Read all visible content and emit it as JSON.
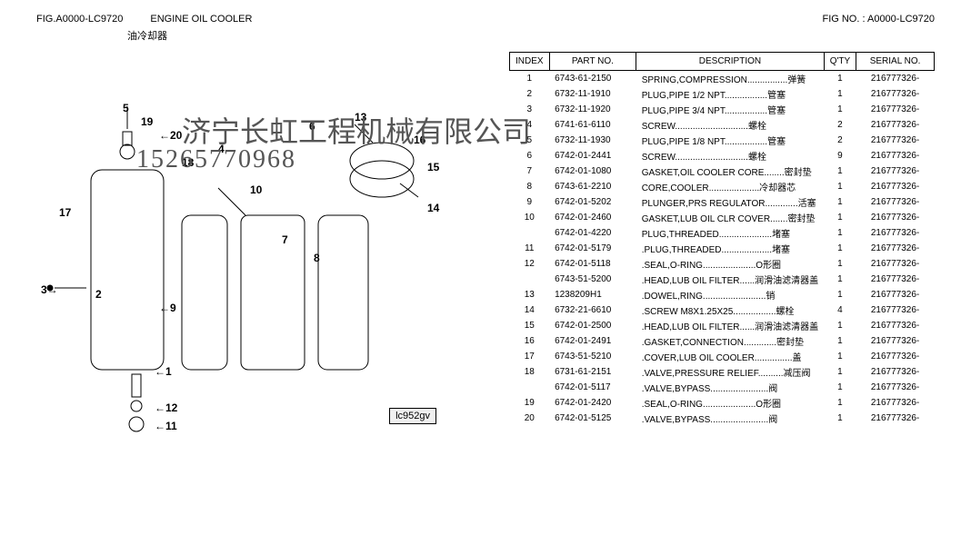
{
  "header": {
    "fig_label": "FIG.A0000-LC9720",
    "title": "ENGINE OIL COOLER",
    "subtitle": "油冷却器",
    "fig_no_label": "FIG NO. :",
    "fig_no": "A0000-LC9720"
  },
  "watermark": {
    "line1": "济宁长虹工程机械有限公司",
    "line2": "15265770968"
  },
  "diagram": {
    "code": "lc952gv",
    "callouts": [
      "1",
      "2",
      "3",
      "4",
      "5",
      "6",
      "7",
      "8",
      "9",
      "10",
      "11",
      "12",
      "13",
      "14",
      "15",
      "16",
      "17",
      "18",
      "19",
      "20"
    ]
  },
  "table": {
    "headers": {
      "index": "INDEX",
      "part_no": "PART NO.",
      "description": "DESCRIPTION",
      "qty": "Q'TY",
      "serial": "SERIAL NO."
    },
    "rows": [
      {
        "idx": "1",
        "pn": "6743-61-2150",
        "desc": "SPRING,COMPRESSION................弹簧",
        "qty": "1",
        "serial": "216777326-"
      },
      {
        "idx": "2",
        "pn": "6732-11-1910",
        "desc": "PLUG,PIPE 1/2 NPT.................管塞",
        "qty": "1",
        "serial": "216777326-"
      },
      {
        "idx": "3",
        "pn": "6732-11-1920",
        "desc": "PLUG,PIPE 3/4 NPT.................管塞",
        "qty": "1",
        "serial": "216777326-"
      },
      {
        "idx": "4",
        "pn": "6741-61-6110",
        "desc": "SCREW.............................螺栓",
        "qty": "2",
        "serial": "216777326-"
      },
      {
        "idx": "5",
        "pn": "6732-11-1930",
        "desc": "PLUG,PIPE 1/8 NPT.................管塞",
        "qty": "2",
        "serial": "216777326-"
      },
      {
        "idx": "6",
        "pn": "6742-01-2441",
        "desc": "SCREW.............................螺栓",
        "qty": "9",
        "serial": "216777326-"
      },
      {
        "idx": "7",
        "pn": "6742-01-1080",
        "desc": "GASKET,OIL COOLER CORE........密封垫",
        "qty": "1",
        "serial": "216777326-"
      },
      {
        "idx": "8",
        "pn": "6743-61-2210",
        "desc": "CORE,COOLER....................冷却器芯",
        "qty": "1",
        "serial": "216777326-"
      },
      {
        "idx": "9",
        "pn": "6742-01-5202",
        "desc": "PLUNGER,PRS REGULATOR.............活塞",
        "qty": "1",
        "serial": "216777326-"
      },
      {
        "idx": "10",
        "pn": "6742-01-2460",
        "desc": "GASKET,LUB OIL CLR COVER.......密封垫",
        "qty": "1",
        "serial": "216777326-"
      },
      {
        "idx": "",
        "pn": "6742-01-4220",
        "desc": "PLUG,THREADED.....................堵塞",
        "qty": "1",
        "serial": "216777326-"
      },
      {
        "idx": "11",
        "pn": "6742-01-5179",
        "desc": ".PLUG,THREADED....................堵塞",
        "qty": "1",
        "serial": "216777326-"
      },
      {
        "idx": "12",
        "pn": "6742-01-5118",
        "desc": ".SEAL,O-RING.....................O形圈",
        "qty": "1",
        "serial": "216777326-"
      },
      {
        "idx": "",
        "pn": "6743-51-5200",
        "desc": ".HEAD,LUB OIL FILTER......润滑油滤清器盖",
        "qty": "1",
        "serial": "216777326-"
      },
      {
        "idx": "13",
        "pn": "1238209H1",
        "desc": ".DOWEL,RING.........................销",
        "qty": "1",
        "serial": "216777326-"
      },
      {
        "idx": "14",
        "pn": "6732-21-6610",
        "desc": ".SCREW M8X1.25X25.................螺栓",
        "qty": "4",
        "serial": "216777326-"
      },
      {
        "idx": "15",
        "pn": "6742-01-2500",
        "desc": ".HEAD,LUB OIL FILTER......润滑油滤清器盖",
        "qty": "1",
        "serial": "216777326-"
      },
      {
        "idx": "16",
        "pn": "6742-01-2491",
        "desc": ".GASKET,CONNECTION.............密封垫",
        "qty": "1",
        "serial": "216777326-"
      },
      {
        "idx": "17",
        "pn": "6743-51-5210",
        "desc": ".COVER,LUB OIL COOLER...............盖",
        "qty": "1",
        "serial": "216777326-"
      },
      {
        "idx": "18",
        "pn": "6731-61-2151",
        "desc": ".VALVE,PRESSURE RELIEF..........减压阀",
        "qty": "1",
        "serial": "216777326-"
      },
      {
        "idx": "",
        "pn": "6742-01-5117",
        "desc": ".VALVE,BYPASS.......................阀",
        "qty": "1",
        "serial": "216777326-"
      },
      {
        "idx": "19",
        "pn": "6742-01-2420",
        "desc": ".SEAL,O-RING.....................O形圈",
        "qty": "1",
        "serial": "216777326-"
      },
      {
        "idx": "20",
        "pn": "6742-01-5125",
        "desc": ".VALVE,BYPASS.......................阀",
        "qty": "1",
        "serial": "216777326-"
      }
    ]
  }
}
